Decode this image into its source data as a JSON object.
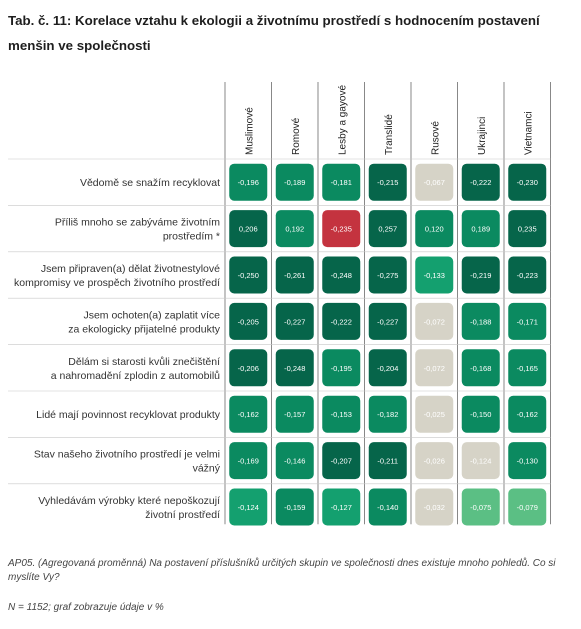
{
  "title": "Tab. č. 11: Korelace vztahu k ekologii a životnímu prostředí s hodnocením postavení menšin ve společnosti",
  "chart_data": {
    "type": "heatmap",
    "columns": [
      "Muslimové",
      "Romové",
      "Lesby a gayové",
      "Translidé",
      "Rusové",
      "Ukrajinci",
      "Vietnamci"
    ],
    "rows": [
      {
        "label": [
          "Vědomě se snažím recyklovat"
        ],
        "values": [
          "-0,196",
          "-0,189",
          "-0,181",
          "-0,215",
          "-0,067",
          "-0,222",
          "-0,230"
        ]
      },
      {
        "label": [
          "Příliš mnoho se zabýváme životním",
          "prostředím *"
        ],
        "values": [
          "0,206",
          "0,192",
          "-0,235",
          "0,257",
          "0,120",
          "0,189",
          "0,235"
        ]
      },
      {
        "label": [
          "Jsem připraven(a) dělat životnestylové",
          "kompromisy ve prospěch životního prostředí"
        ],
        "values": [
          "-0,250",
          "-0,261",
          "-0,248",
          "-0,275",
          "-0,133",
          "-0,219",
          "-0,223"
        ]
      },
      {
        "label": [
          "Jsem ochoten(a) zaplatit více",
          "za ekologicky přijatelné produkty"
        ],
        "values": [
          "-0,205",
          "-0,227",
          "-0,222",
          "-0,227",
          "-0,072",
          "-0,188",
          "-0,171"
        ]
      },
      {
        "label": [
          "Dělám si starosti kvůli znečištění",
          "a nahromadění zplodin z automobilů"
        ],
        "values": [
          "-0,206",
          "-0,248",
          "-0,195",
          "-0,204",
          "-0,072",
          "-0,168",
          "-0,165"
        ]
      },
      {
        "label": [
          "Lidé mají povinnost recyklovat produkty"
        ],
        "values": [
          "-0,162",
          "-0,157",
          "-0,153",
          "-0,182",
          "-0,025",
          "-0,150",
          "-0,162"
        ]
      },
      {
        "label": [
          "Stav našeho životního prostředí je velmi",
          "vážný"
        ],
        "values": [
          "-0,169",
          "-0,146",
          "-0,207",
          "-0,211",
          "-0,026",
          "-0,124",
          "-0,130"
        ]
      },
      {
        "label": [
          "Vyhledávám výrobky které nepoškozují",
          "životní prostředí"
        ],
        "values": [
          "-0,124",
          "-0,159",
          "-0,127",
          "-0,140",
          "-0,032",
          "-0,075",
          "-0,079"
        ]
      }
    ],
    "cell_colors": [
      [
        "#0b8a60",
        "#0b8a60",
        "#0b8a60",
        "#06654a",
        "#d6d3c7",
        "#06654a",
        "#06654a"
      ],
      [
        "#06654a",
        "#0b8a60",
        "#c4333f",
        "#06654a",
        "#0b8a60",
        "#0b8a60",
        "#06654a"
      ],
      [
        "#06654a",
        "#06654a",
        "#06654a",
        "#06654a",
        "#14a06f",
        "#06654a",
        "#06654a"
      ],
      [
        "#06654a",
        "#06654a",
        "#06654a",
        "#06654a",
        "#d6d3c7",
        "#0b8a60",
        "#0b8a60"
      ],
      [
        "#06654a",
        "#06654a",
        "#0b8a60",
        "#06654a",
        "#d6d3c7",
        "#0b8a60",
        "#0b8a60"
      ],
      [
        "#0b8a60",
        "#0b8a60",
        "#0b8a60",
        "#0b8a60",
        "#d6d3c7",
        "#0b8a60",
        "#0b8a60"
      ],
      [
        "#0b8a60",
        "#0b8a60",
        "#06654a",
        "#06654a",
        "#d6d3c7",
        "#d6d3c7",
        "#0b8a60"
      ],
      [
        "#14a06f",
        "#0b8a60",
        "#14a06f",
        "#0b8a60",
        "#d6d3c7",
        "#5bbf84",
        "#5bbf84"
      ]
    ],
    "colors": {
      "dark_green": "#06654a",
      "mid_green": "#0b8a60",
      "green": "#14a06f",
      "light_green": "#5bbf84",
      "grey": "#d6d3c7",
      "red": "#c4333f",
      "column_divider": "#555555",
      "row_divider": "#c8c8c8"
    }
  },
  "notes": {
    "source": "AP05. (Agregovaná proměnná) Na postavení příslušníků určitých skupin ve společnosti dnes existuje mnoho pohledů. Co si myslíte Vy?",
    "sample": "N = 1152; graf zobrazuje údaje v %"
  }
}
